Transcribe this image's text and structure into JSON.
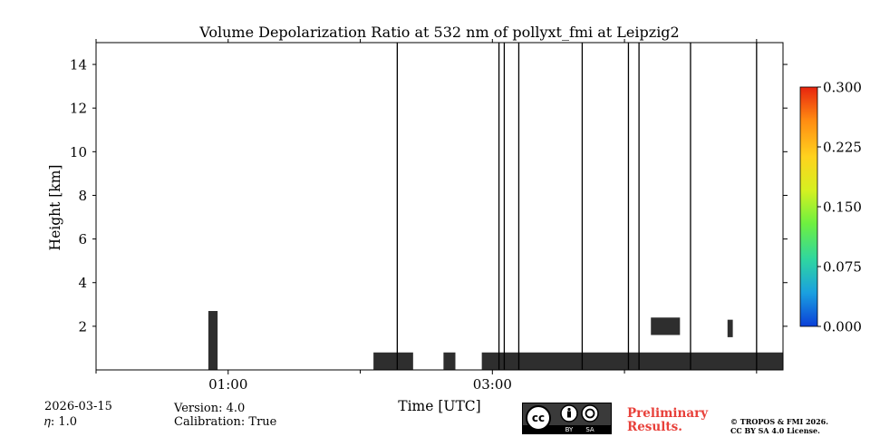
{
  "chart_data": {
    "type": "heatmap",
    "title": "Volume Depolarization Ratio at 532 nm of pollyxt_fmi at Leipzig2",
    "xlabel": "Time [UTC]",
    "ylabel": "Height [km]",
    "xlim_hours": [
      0.0,
      5.2
    ],
    "ylim_km": [
      0,
      15
    ],
    "x_ticks": [
      {
        "hour": 1.0,
        "label": "01:00"
      },
      {
        "hour": 3.0,
        "label": "03:00"
      }
    ],
    "x_minor_ticks_hours": [
      0.0,
      2.0,
      4.0,
      5.0
    ],
    "y_ticks": [
      {
        "value": 2,
        "label": "2"
      },
      {
        "value": 4,
        "label": "4"
      },
      {
        "value": 6,
        "label": "6"
      },
      {
        "value": 8,
        "label": "8"
      },
      {
        "value": 10,
        "label": "10"
      },
      {
        "value": 12,
        "label": "12"
      },
      {
        "value": 14,
        "label": "14"
      }
    ],
    "colorbar": {
      "min": 0.0,
      "max": 0.3,
      "ticks": [
        {
          "value": 0.0,
          "label": "0.000"
        },
        {
          "value": 0.075,
          "label": "0.075"
        },
        {
          "value": 0.15,
          "label": "0.150"
        },
        {
          "value": 0.225,
          "label": "0.225"
        },
        {
          "value": 0.3,
          "label": "0.300"
        }
      ],
      "colormap": [
        "#0b3fd8",
        "#1aa0e0",
        "#2fd6a0",
        "#6ef040",
        "#d6f020",
        "#ffd21e",
        "#ff8c12",
        "#e8240e"
      ]
    },
    "data_regions": [
      {
        "name": "aerosol-column",
        "start_hour": 0.85,
        "end_hour": 0.92,
        "bottom_km": 0.0,
        "top_km": 2.7,
        "value": 0.0
      },
      {
        "name": "boundary-layer-1",
        "start_hour": 2.1,
        "end_hour": 2.4,
        "bottom_km": 0.0,
        "top_km": 0.8,
        "value": 0.0
      },
      {
        "name": "boundary-layer-2",
        "start_hour": 2.63,
        "end_hour": 2.72,
        "bottom_km": 0.0,
        "top_km": 0.8,
        "value": 0.0
      },
      {
        "name": "boundary-layer-3",
        "start_hour": 2.92,
        "end_hour": 5.2,
        "bottom_km": 0.0,
        "top_km": 0.8,
        "value": 0.0
      },
      {
        "name": "cloud-patch",
        "start_hour": 4.2,
        "end_hour": 4.42,
        "bottom_km": 1.6,
        "top_km": 2.4,
        "value": 0.0
      },
      {
        "name": "cloud-patch-2",
        "start_hour": 4.78,
        "end_hour": 4.82,
        "bottom_km": 1.5,
        "top_km": 2.3,
        "value": 0.0
      }
    ],
    "profile_lines_hours": [
      2.28,
      3.05,
      3.09,
      3.2,
      3.68,
      4.03,
      4.11,
      4.5,
      5.0
    ]
  },
  "footer": {
    "date": "2026-03-15",
    "eta_label": "𝜂: 1.0",
    "version": "Version: 4.0",
    "calibration": "Calibration: True",
    "cc_by_label": "BY",
    "cc_sa_label": "SA",
    "preliminary_line1": "Preliminary",
    "preliminary_line2": "Results.",
    "copyright_line1": "© TROPOS & FMI 2026.",
    "copyright_line2": "CC BY SA 4.0 License."
  }
}
